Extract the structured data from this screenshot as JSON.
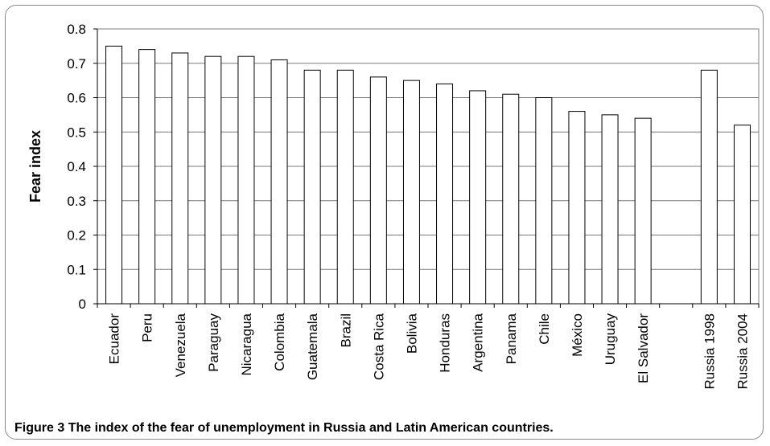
{
  "caption": {
    "label": "Figure 3",
    "text": "The index of the fear of unemployment in Russia and Latin American countries."
  },
  "chart_data": {
    "type": "bar",
    "title": "",
    "xlabel": "",
    "ylabel": "Fear index",
    "ylim": [
      0,
      0.8
    ],
    "yticks": [
      "0",
      "0.1",
      "0.2",
      "0.3",
      "0.4",
      "0.5",
      "0.6",
      "0.7",
      "0.8"
    ],
    "grid": true,
    "categories": [
      "Ecuador",
      "Peru",
      "Venezuela",
      "Paraguay",
      "Nicaragua",
      "Colombia",
      "Guatemala",
      "Brazil",
      "Costa Rica",
      "Bolivia",
      "Honduras",
      "Argentina",
      "Panama",
      "Chile",
      "México",
      "Uruguay",
      "El Salvador",
      "",
      "Russia 1998",
      "Russia 2004"
    ],
    "values": [
      0.75,
      0.74,
      0.73,
      0.72,
      0.72,
      0.71,
      0.68,
      0.68,
      0.66,
      0.65,
      0.64,
      0.62,
      0.61,
      0.6,
      0.56,
      0.55,
      0.54,
      null,
      0.68,
      0.52
    ],
    "bar_fill": "#ffffff",
    "bar_stroke": "#000000",
    "plot_border": "#808080"
  }
}
